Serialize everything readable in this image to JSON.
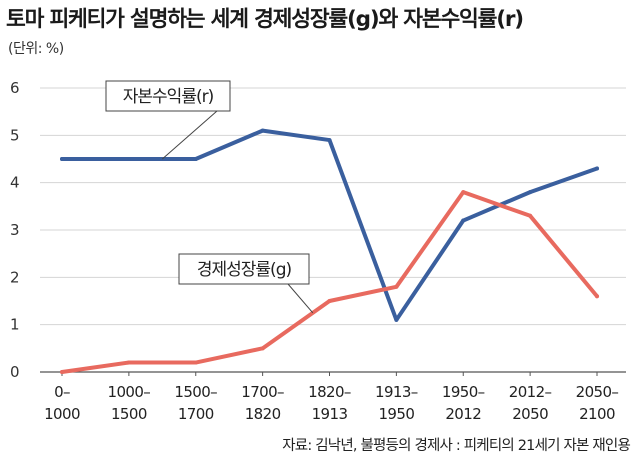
{
  "title": "토마 피케티가 설명하는 세계 경제성장률(g)와 자본수익률(r)",
  "unit_label": "(단위: %)",
  "source": "자료: 김낙년, 불평등의 경제사 : 피케티의 21세기 자본 재인용",
  "colors": {
    "return_on_capital": "#3a5f9e",
    "economic_growth": "#e86a5f",
    "grid": "#d4d4d4",
    "axis": "#555555"
  },
  "chart_data": {
    "type": "line",
    "categories": [
      [
        "0–",
        "1000"
      ],
      [
        "1000–",
        "1500"
      ],
      [
        "1500–",
        "1700"
      ],
      [
        "1700–",
        "1820"
      ],
      [
        "1820–",
        "1913"
      ],
      [
        "1913–",
        "1950"
      ],
      [
        "1950–",
        "2012"
      ],
      [
        "2012–",
        "2050"
      ],
      [
        "2050–",
        "2100"
      ]
    ],
    "ylim": [
      0,
      6
    ],
    "yticks": [
      0,
      1,
      2,
      3,
      4,
      5,
      6
    ],
    "grid": true,
    "series": [
      {
        "name": "자본수익률(r)",
        "color": "#3a5f9e",
        "values": [
          4.5,
          4.5,
          4.5,
          5.1,
          4.9,
          1.1,
          3.2,
          3.8,
          4.3
        ]
      },
      {
        "name": "경제성장률(g)",
        "color": "#e86a5f",
        "values": [
          0.0,
          0.2,
          0.2,
          0.5,
          1.5,
          1.8,
          3.8,
          3.3,
          1.6
        ]
      }
    ]
  }
}
